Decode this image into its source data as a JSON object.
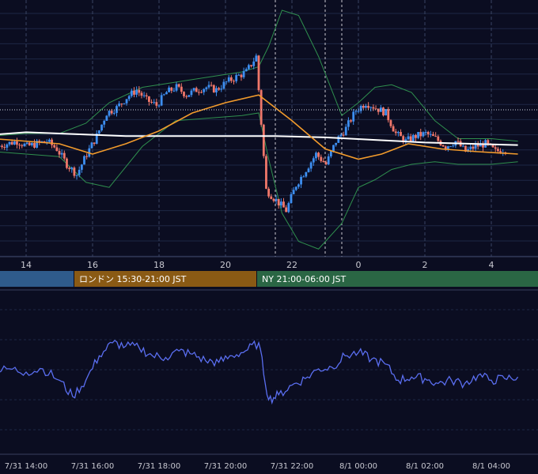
{
  "colors": {
    "background": "#0b0d21",
    "grid": "#1e2745",
    "candle_up": "#3d8ef0",
    "candle_down": "#f0776a",
    "ma_orange": "#f29b2c",
    "ma_white": "#ffffff",
    "bollinger": "#2f8f4e",
    "oscillator": "#5a6ef0",
    "session_tokyo": "#2f5b8c",
    "session_london": "#8a5a14",
    "session_ny": "#2a6644"
  },
  "top_axis": {
    "hour_labels": [
      "14",
      "16",
      "18",
      "20",
      "22",
      "0",
      "2",
      "4"
    ]
  },
  "sessions": [
    {
      "name": "tokyo",
      "label": ""
    },
    {
      "name": "london",
      "label": "ロンドン 15:30-21:00 JST"
    },
    {
      "name": "ny",
      "label": "NY 21:00-06:00 JST"
    }
  ],
  "bottom_axis": {
    "labels": [
      "7/31 14:00",
      "7/31 16:00",
      "7/31 18:00",
      "7/31 20:00",
      "7/31 22:00",
      "8/1 00:00",
      "8/1 02:00",
      "8/1 04:00"
    ]
  },
  "chart_data": [
    {
      "type": "candlestick",
      "x_hours": [
        13.2,
        13.5,
        13.8,
        14.1,
        14.4,
        14.7,
        15.0,
        15.3,
        15.6,
        15.9,
        16.2,
        16.5,
        16.8,
        17.1,
        17.4,
        17.7,
        18.0,
        18.3,
        18.6,
        18.9,
        19.2,
        19.5,
        19.8,
        20.1,
        20.4,
        20.7,
        21.0,
        21.3,
        21.6,
        21.9,
        22.2,
        22.5,
        22.8,
        23.1,
        23.4,
        23.7,
        24.0,
        24.3,
        24.6,
        24.9,
        25.2,
        25.5,
        25.8,
        26.1,
        26.4,
        26.7,
        27.0,
        27.3,
        27.6,
        27.9,
        28.2,
        28.5
      ],
      "close": [
        0.43,
        0.44,
        0.45,
        0.43,
        0.44,
        0.45,
        0.42,
        0.36,
        0.32,
        0.4,
        0.47,
        0.56,
        0.58,
        0.62,
        0.65,
        0.61,
        0.59,
        0.64,
        0.66,
        0.63,
        0.65,
        0.66,
        0.65,
        0.68,
        0.7,
        0.72,
        0.78,
        0.26,
        0.22,
        0.18,
        0.28,
        0.34,
        0.4,
        0.36,
        0.45,
        0.5,
        0.57,
        0.6,
        0.58,
        0.56,
        0.48,
        0.45,
        0.47,
        0.48,
        0.46,
        0.43,
        0.45,
        0.41,
        0.43,
        0.44,
        0.41,
        0.42
      ],
      "color_up": "#3d8ef0",
      "color_down": "#f0776a"
    },
    {
      "type": "line",
      "name": "",
      "x_hours": [
        13.0,
        14.0,
        15.0,
        16.0,
        17.0,
        18.0,
        19.0,
        20.0,
        21.0,
        21.3,
        22.0,
        23.0,
        24.0,
        24.7,
        25.5,
        26.5,
        27.5,
        28.8
      ],
      "values": [
        0.46,
        0.45,
        0.44,
        0.4,
        0.44,
        0.49,
        0.56,
        0.6,
        0.63,
        0.6,
        0.53,
        0.42,
        0.38,
        0.4,
        0.44,
        0.42,
        0.41,
        0.4
      ],
      "color": "#f29b2c"
    },
    {
      "type": "line",
      "name": "",
      "x_hours": [
        13.0,
        14.0,
        15.0,
        16.0,
        17.0,
        18.0,
        20.0,
        21.5,
        23.0,
        24.5,
        26.0,
        28.8
      ],
      "values": [
        0.475,
        0.485,
        0.48,
        0.475,
        0.47,
        0.47,
        0.47,
        0.47,
        0.465,
        0.455,
        0.445,
        0.435
      ],
      "color": "#ffffff"
    },
    {
      "type": "line",
      "name": "",
      "x_hours": [
        13.0,
        14.0,
        15.0,
        15.8,
        16.5,
        17.5,
        18.5,
        19.5,
        20.5,
        21.0,
        21.3,
        21.7,
        22.2,
        22.8,
        23.5,
        24.0,
        24.5,
        25.0,
        25.6,
        26.3,
        27.0,
        28.0,
        28.8
      ],
      "upper": [
        0.47,
        0.48,
        0.48,
        0.52,
        0.6,
        0.66,
        0.68,
        0.7,
        0.72,
        0.74,
        0.82,
        0.96,
        0.94,
        0.78,
        0.55,
        0.6,
        0.66,
        0.67,
        0.64,
        0.53,
        0.46,
        0.46,
        0.45
      ],
      "lower": [
        0.41,
        0.4,
        0.39,
        0.29,
        0.27,
        0.43,
        0.53,
        0.54,
        0.55,
        0.56,
        0.38,
        0.17,
        0.06,
        0.03,
        0.13,
        0.27,
        0.3,
        0.34,
        0.36,
        0.37,
        0.36,
        0.36,
        0.37
      ],
      "color": "#2f8f4e"
    },
    {
      "type": "line",
      "name": "",
      "x_hours": [
        13.0,
        13.5,
        14.0,
        14.5,
        15.0,
        15.4,
        15.8,
        16.2,
        16.6,
        17.0,
        17.4,
        17.8,
        18.2,
        18.6,
        19.0,
        19.4,
        19.8,
        20.2,
        20.6,
        21.0,
        21.3,
        21.6,
        22.0,
        22.4,
        22.8,
        23.2,
        23.6,
        24.0,
        24.4,
        24.8,
        25.2,
        25.6,
        26.0,
        26.4,
        26.8,
        27.2,
        27.6,
        28.0,
        28.4,
        28.8
      ],
      "values": [
        0.5,
        0.52,
        0.5,
        0.52,
        0.45,
        0.35,
        0.45,
        0.6,
        0.68,
        0.66,
        0.65,
        0.6,
        0.59,
        0.63,
        0.61,
        0.57,
        0.56,
        0.6,
        0.63,
        0.68,
        0.33,
        0.36,
        0.42,
        0.46,
        0.52,
        0.53,
        0.6,
        0.62,
        0.58,
        0.55,
        0.45,
        0.47,
        0.46,
        0.43,
        0.45,
        0.43,
        0.48,
        0.45,
        0.46,
        0.47
      ],
      "color": "#5a6ef0"
    }
  ]
}
